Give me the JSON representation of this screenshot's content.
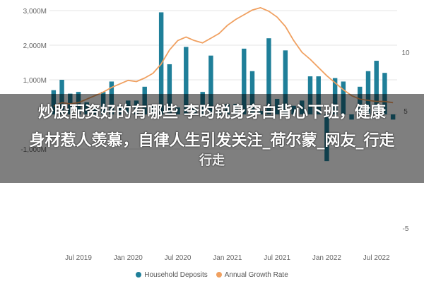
{
  "chart_data": {
    "type": "bar",
    "x": [
      "2019-04",
      "2019-05",
      "2019-06",
      "2019-07",
      "2019-08",
      "2019-09",
      "2019-10",
      "2019-11",
      "2019-12",
      "2020-01",
      "2020-02",
      "2020-03",
      "2020-04",
      "2020-05",
      "2020-06",
      "2020-07",
      "2020-08",
      "2020-09",
      "2020-10",
      "2020-11",
      "2020-12",
      "2021-01",
      "2021-02",
      "2021-03",
      "2021-04",
      "2021-05",
      "2021-06",
      "2021-07",
      "2021-08",
      "2021-09",
      "2021-10",
      "2021-11",
      "2021-12",
      "2022-01",
      "2022-02",
      "2022-03",
      "2022-04",
      "2022-05",
      "2022-06",
      "2022-07",
      "2022-08",
      "2022-09"
    ],
    "series": [
      {
        "name": "Household Deposits",
        "kind": "bar",
        "axis": "left",
        "color": "#1f7f99",
        "values": [
          700,
          1000,
          600,
          650,
          350,
          200,
          650,
          950,
          250,
          400,
          400,
          800,
          250,
          2950,
          1450,
          200,
          1950,
          200,
          650,
          1700,
          100,
          300,
          300,
          1900,
          1250,
          100,
          2200,
          450,
          1850,
          250,
          400,
          1100,
          1100,
          -1350,
          1050,
          950,
          -150,
          800,
          1250,
          1550,
          1200,
          -150
        ]
      },
      {
        "name": "Annual Growth Rate",
        "kind": "line",
        "axis": "right",
        "color": "#f0a060",
        "values": [
          5.4,
          5.7,
          5.6,
          5.7,
          6.0,
          6.3,
          6.6,
          7.0,
          7.3,
          7.6,
          7.5,
          7.8,
          8.2,
          9.0,
          10.2,
          11.0,
          11.3,
          11.0,
          10.8,
          11.2,
          11.6,
          12.3,
          12.8,
          13.2,
          13.6,
          13.8,
          13.5,
          13.0,
          12.2,
          11.0,
          10.0,
          9.4,
          8.7,
          8.0,
          7.4,
          6.8,
          6.3,
          6.0,
          5.9,
          5.8,
          5.8,
          5.7
        ]
      }
    ],
    "xticks": [
      {
        "value": "2019-07",
        "label": "Jul 2019"
      },
      {
        "value": "2020-01",
        "label": "Jan 2020"
      },
      {
        "value": "2020-07",
        "label": "Jul 2020"
      },
      {
        "value": "2021-01",
        "label": "Jan 2021"
      },
      {
        "value": "2021-07",
        "label": "Jul 2021"
      },
      {
        "value": "2022-01",
        "label": "Jan 2022"
      },
      {
        "value": "2022-07",
        "label": "Jul 2022"
      }
    ],
    "left_axis": {
      "ylim": [
        -1500,
        3000
      ],
      "ticks": [
        -1000,
        0,
        1000,
        2000,
        3000
      ],
      "tick_labels": [
        "-1,000M",
        "",
        "1,000M",
        "2,000M",
        "3,000M"
      ]
    },
    "right_axis": {
      "ylim": [
        -6,
        14
      ],
      "ticks": [
        -5,
        0,
        5,
        10
      ],
      "tick_labels": [
        "-5",
        "",
        "5",
        "10"
      ]
    },
    "grid": true,
    "legend_position": "bottom"
  },
  "legend": {
    "deposits": "Household Deposits",
    "growth": "Annual Growth Rate"
  },
  "overlay": {
    "line1": "炒股配资好的有哪些 李昀锐身穿白背心下班，健康",
    "line2": "身材惹人羡慕，自律人生引发关注_荷尔蒙_网友_行走",
    "line3": "行走"
  },
  "colors": {
    "bar": "#1f7f99",
    "line": "#f0a060",
    "grid": "#e6e6e6",
    "axis_text": "#666666"
  }
}
